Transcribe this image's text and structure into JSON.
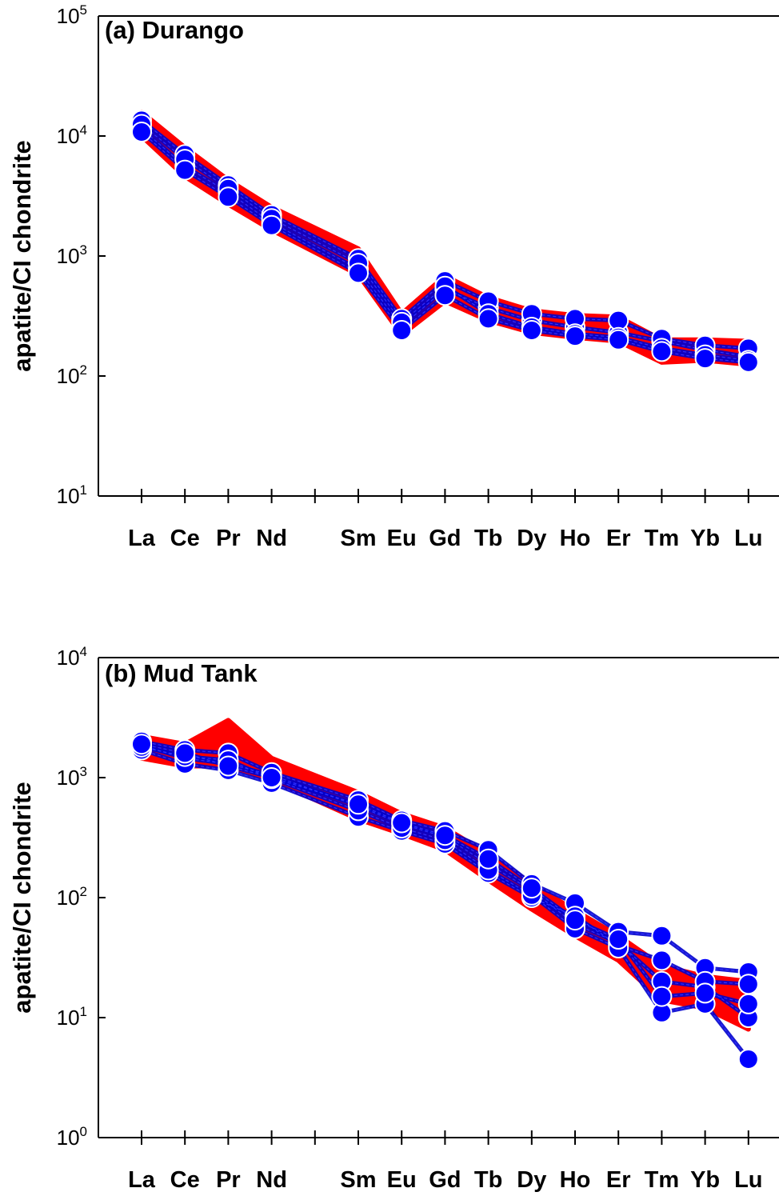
{
  "chart_data": [
    {
      "type": "line",
      "title": "(a) Durango",
      "ylabel": "apatite/CI chondrite",
      "yscale": "log",
      "ylim": [
        10,
        100000
      ],
      "y_ticks": [
        {
          "value": 10,
          "base": "10",
          "exp": "1"
        },
        {
          "value": 100,
          "base": "10",
          "exp": "2"
        },
        {
          "value": 1000,
          "base": "10",
          "exp": "3"
        },
        {
          "value": 10000,
          "base": "10",
          "exp": "4"
        },
        {
          "value": 100000,
          "base": "10",
          "exp": "5"
        }
      ],
      "categories": [
        "La",
        "Ce",
        "Pr",
        "Nd",
        "",
        "Sm",
        "Eu",
        "Gd",
        "Tb",
        "Dy",
        "Ho",
        "Er",
        "Tm",
        "Yb",
        "Lu"
      ],
      "band_upper": [
        15800,
        8000,
        4300,
        2550,
        null,
        1150,
        330,
        680,
        450,
        350,
        320,
        310,
        200,
        200,
        195
      ],
      "band_lower": [
        10000,
        4600,
        2700,
        1650,
        null,
        700,
        220,
        420,
        290,
        230,
        210,
        195,
        130,
        135,
        125
      ],
      "series": [
        {
          "values": [
            11500,
            5600,
            3400,
            1900,
            null,
            780,
            260,
            530,
            370,
            290,
            255,
            230,
            195,
            165,
            145
          ]
        },
        {
          "values": [
            13500,
            7000,
            3900,
            2200,
            null,
            950,
            300,
            620,
            420,
            330,
            300,
            290,
            205,
            180,
            170
          ]
        },
        {
          "values": [
            12500,
            6400,
            3650,
            2050,
            null,
            870,
            280,
            560,
            330,
            255,
            225,
            210,
            170,
            150,
            135
          ]
        },
        {
          "values": [
            10800,
            5200,
            3100,
            1800,
            null,
            720,
            240,
            470,
            300,
            240,
            215,
            200,
            160,
            140,
            130
          ]
        }
      ],
      "marker_color": "#0000ff",
      "line_color": "#0000cc",
      "band_color": "#ff0000",
      "grid": false,
      "legend": "none"
    },
    {
      "type": "line",
      "title": "(b) Mud Tank",
      "ylabel": "apatite/CI chondrite",
      "yscale": "log",
      "ylim": [
        1,
        10000
      ],
      "y_ticks": [
        {
          "value": 1,
          "base": "10",
          "exp": "0"
        },
        {
          "value": 10,
          "base": "10",
          "exp": "1"
        },
        {
          "value": 100,
          "base": "10",
          "exp": "2"
        },
        {
          "value": 1000,
          "base": "10",
          "exp": "3"
        },
        {
          "value": 10000,
          "base": "10",
          "exp": "4"
        }
      ],
      "categories": [
        "La",
        "Ce",
        "Pr",
        "Nd",
        "",
        "Sm",
        "Eu",
        "Gd",
        "Tb",
        "Dy",
        "Ho",
        "Er",
        "Tm",
        "Yb",
        "Lu"
      ],
      "band_upper": [
        2200,
        1900,
        3000,
        1450,
        null,
        750,
        500,
        380,
        230,
        130,
        78,
        48,
        27,
        22,
        20
      ],
      "band_lower": [
        1450,
        1250,
        1250,
        950,
        null,
        450,
        340,
        250,
        140,
        80,
        48,
        30,
        14,
        12,
        8
      ],
      "series": [
        {
          "values": [
            1850,
            1450,
            1300,
            1050,
            null,
            580,
            410,
            320,
            190,
            115,
            60,
            42,
            20,
            18,
            10
          ]
        },
        {
          "values": [
            2000,
            1700,
            1600,
            1100,
            null,
            650,
            440,
            360,
            250,
            130,
            90,
            52,
            48,
            26,
            24
          ]
        },
        {
          "values": [
            1700,
            1300,
            1150,
            900,
            null,
            470,
            360,
            280,
            160,
            100,
            70,
            40,
            30,
            20,
            19
          ]
        },
        {
          "values": [
            1800,
            1500,
            1400,
            980,
            null,
            530,
            380,
            300,
            170,
            105,
            55,
            38,
            11,
            13,
            4.5
          ]
        },
        {
          "values": [
            1900,
            1600,
            1250,
            1000,
            null,
            600,
            420,
            330,
            210,
            120,
            65,
            45,
            15,
            16,
            13
          ]
        }
      ],
      "marker_color": "#0000ff",
      "line_color": "#0000cc",
      "band_color": "#ff0000",
      "grid": false,
      "legend": "none"
    }
  ]
}
